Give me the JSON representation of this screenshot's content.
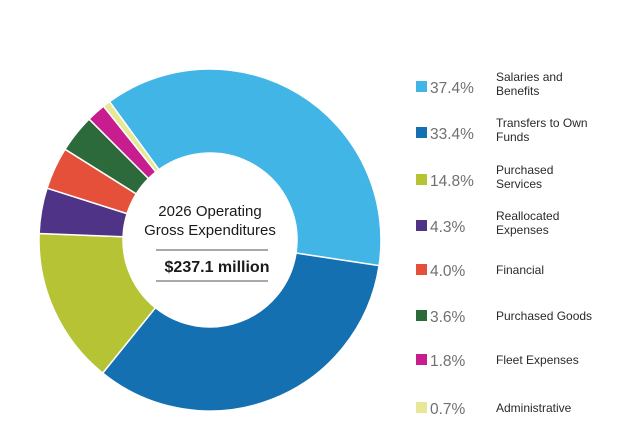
{
  "chart_data": {
    "type": "pie",
    "style": "donut",
    "title": "2026 Operating Gross Expenditures",
    "title_lines": [
      "2026 Operating",
      "Gross Expenditures"
    ],
    "total_label": "$237.1 million",
    "unit": "%",
    "slices": [
      {
        "label": "Salaries and Benefits",
        "label_lines": [
          "Salaries and",
          "Benefits"
        ],
        "value": 37.4,
        "display": "37.4%",
        "color": "#41b6e6"
      },
      {
        "label": "Transfers to Own Funds",
        "label_lines": [
          "Transfers to Own",
          "Funds"
        ],
        "value": 33.4,
        "display": "33.4%",
        "color": "#1470b0"
      },
      {
        "label": "Purchased Services",
        "label_lines": [
          "Purchased",
          "Services"
        ],
        "value": 14.8,
        "display": "14.8%",
        "color": "#b5c334"
      },
      {
        "label": "Reallocated Expenses",
        "label_lines": [
          "Reallocated",
          "Expenses"
        ],
        "value": 4.3,
        "display": "4.3%",
        "color": "#4e3386"
      },
      {
        "label": "Financial",
        "label_lines": [
          "Financial"
        ],
        "value": 4.0,
        "display": "4.0%",
        "color": "#e5503a"
      },
      {
        "label": "Purchased Goods",
        "label_lines": [
          "Purchased Goods"
        ],
        "value": 3.6,
        "display": "3.6%",
        "color": "#2c6a3c"
      },
      {
        "label": "Fleet Expenses",
        "label_lines": [
          "Fleet Expenses"
        ],
        "value": 1.8,
        "display": "1.8%",
        "color": "#c71d8e"
      },
      {
        "label": "Administrative",
        "label_lines": [
          "Administrative"
        ],
        "value": 0.7,
        "display": "0.7%",
        "color": "#e7e896"
      }
    ],
    "legend_position": "right"
  }
}
